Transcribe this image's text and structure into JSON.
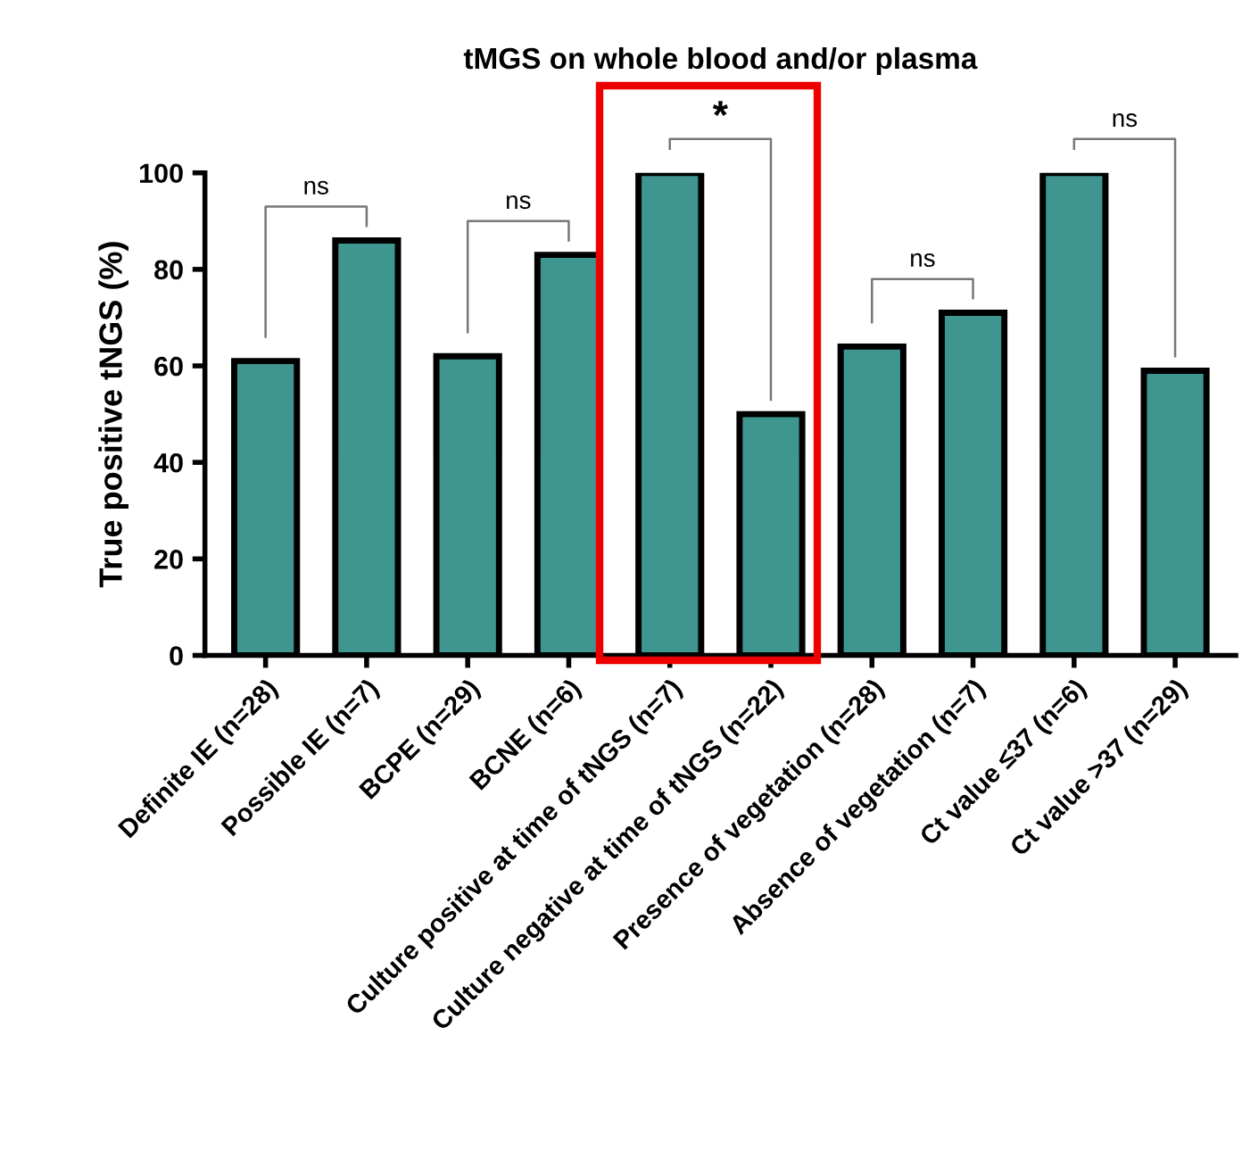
{
  "chart_data": {
    "type": "bar",
    "title": "tMGS on whole blood and/or plasma",
    "ylabel": "True positive tNGS (%)",
    "categories": [
      "Definite IE (n=28)",
      "Possible IE (n=7)",
      "BCPE (n=29)",
      "BCNE (n=6)",
      "Culture positive at time of tNGS (n=7)",
      "Culture negative at time of tNGS (n=22)",
      "Presence of vegetation (n=28)",
      "Absence of vegetation (n=7)",
      "Ct value ≤37 (n=6)",
      "Ct value >37 (n=29)"
    ],
    "values": [
      61,
      86,
      62,
      83,
      100,
      50,
      64,
      71,
      100,
      59
    ],
    "color": "#3f9690",
    "ylim": [
      0,
      100
    ],
    "yticks": [
      0,
      20,
      40,
      60,
      80,
      100
    ],
    "grid": false,
    "annotations": [
      "ns",
      "ns",
      "*",
      "ns",
      "ns"
    ]
  }
}
